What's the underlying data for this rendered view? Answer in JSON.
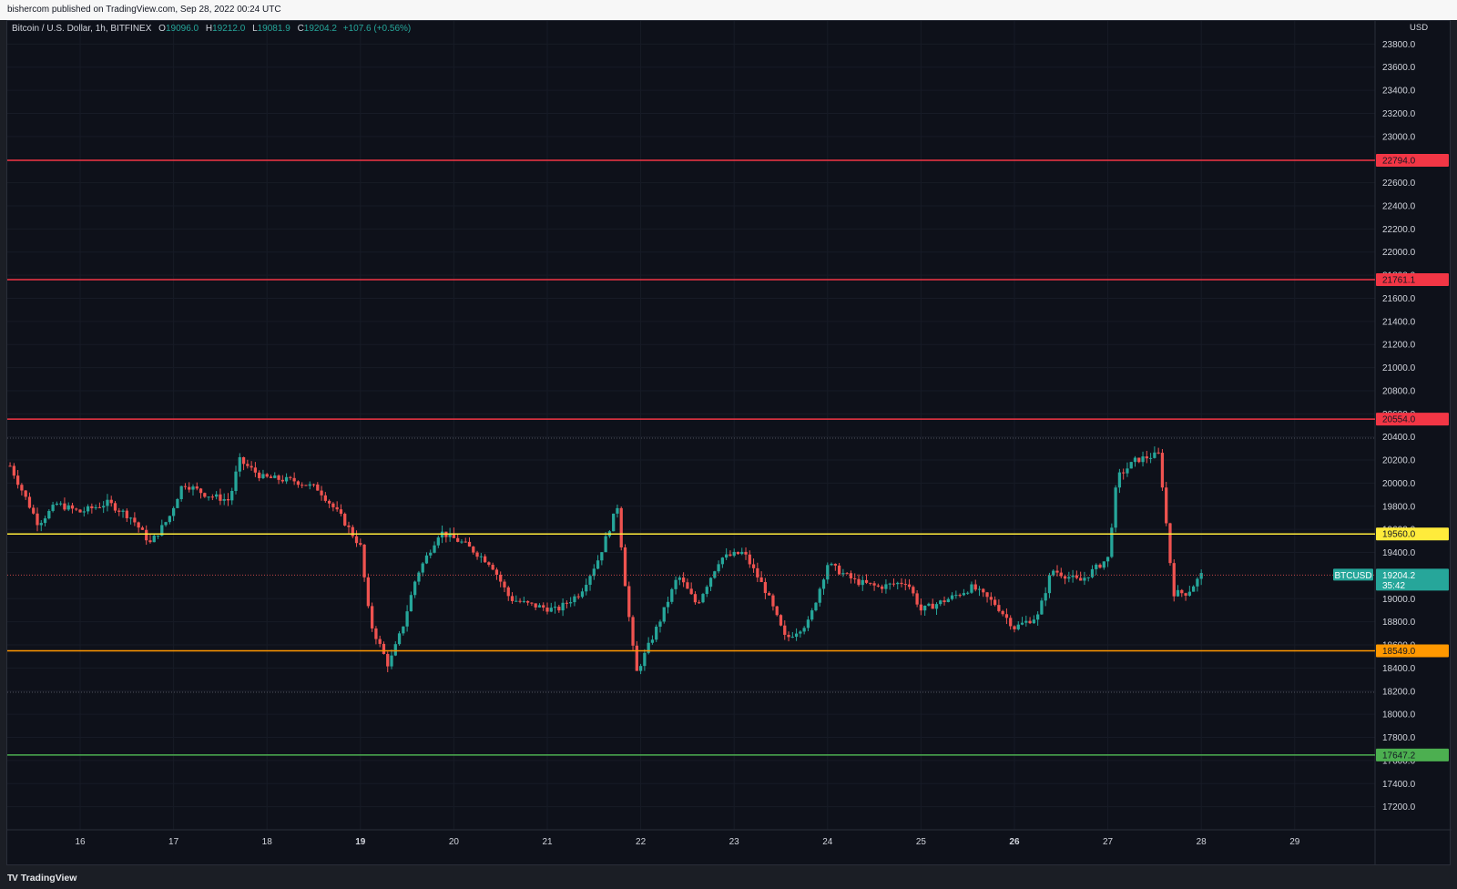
{
  "header": {
    "published": "bishercom published on TradingView.com, Sep 28, 2022 00:24 UTC"
  },
  "symbol": {
    "title": "Bitcoin / U.S. Dollar, 1h, BITFINEX",
    "open_label": "O",
    "open": "19096.0",
    "high_label": "H",
    "high": "19212.0",
    "low_label": "L",
    "low": "19081.9",
    "close_label": "C",
    "close": "19204.2",
    "change": "+107.6 (+0.56%)"
  },
  "currency": "USD",
  "colors": {
    "bg": "#0e111a",
    "up": "#26a69a",
    "down": "#ef5350",
    "red_level": "#f23645",
    "yellow_level": "#ffeb3b",
    "orange_level": "#ff9800",
    "green_level": "#4caf50"
  },
  "price_axis_ticks": [
    "23800.0",
    "23600.0",
    "23400.0",
    "23200.0",
    "23000.0",
    "22600.0",
    "22400.0",
    "22200.0",
    "22000.0",
    "21800.0",
    "21600.0",
    "21400.0",
    "21200.0",
    "21000.0",
    "20800.0",
    "20600.0",
    "20400.0",
    "20200.0",
    "20000.0",
    "19800.0",
    "19600.0",
    "19400.0",
    "19000.0",
    "18800.0",
    "18600.0",
    "18400.0",
    "18200.0",
    "18000.0",
    "17800.0",
    "17600.0",
    "17400.0",
    "17200.0"
  ],
  "time_axis_ticks": [
    {
      "label": "16",
      "t": 16
    },
    {
      "label": "17",
      "t": 17
    },
    {
      "label": "18",
      "t": 18
    },
    {
      "label": "19",
      "t": 19,
      "bold": true
    },
    {
      "label": "20",
      "t": 20
    },
    {
      "label": "21",
      "t": 21
    },
    {
      "label": "22",
      "t": 22
    },
    {
      "label": "23",
      "t": 23
    },
    {
      "label": "24",
      "t": 24
    },
    {
      "label": "25",
      "t": 25
    },
    {
      "label": "26",
      "t": 26,
      "bold": true
    },
    {
      "label": "27",
      "t": 27
    },
    {
      "label": "28",
      "t": 28
    },
    {
      "label": "29",
      "t": 29
    }
  ],
  "levels": [
    {
      "price": 22794.0,
      "label": "22794.0",
      "color": "#f23645"
    },
    {
      "price": 21761.1,
      "label": "21761.1",
      "color": "#f23645"
    },
    {
      "price": 20554.0,
      "label": "20554.0",
      "color": "#f23645"
    },
    {
      "price": 19560.0,
      "label": "19560.0",
      "color": "#ffeb3b"
    },
    {
      "price": 18549.0,
      "label": "18549.0",
      "color": "#ff9800"
    },
    {
      "price": 17647.2,
      "label": "17647.2",
      "color": "#4caf50"
    }
  ],
  "dotted_levels": [
    20390,
    18190
  ],
  "last_price": {
    "symbol": "BTCUSD",
    "price": "19204.2",
    "countdown": "35:42",
    "value": 19204.2
  },
  "chart_data": {
    "type": "candlestick",
    "interval": "1h",
    "x_unit": "day of Sep 2022",
    "y_unit": "USD",
    "ylim": [
      17000,
      24000
    ],
    "xlim": [
      15.22,
      29.86
    ],
    "series": [
      {
        "name": "BTCUSD",
        "points": [
          {
            "t": 15.25,
            "v": 20150
          },
          {
            "t": 15.55,
            "v": 19650
          },
          {
            "t": 15.75,
            "v": 19820
          },
          {
            "t": 16.0,
            "v": 19750
          },
          {
            "t": 16.3,
            "v": 19830
          },
          {
            "t": 16.55,
            "v": 19700
          },
          {
            "t": 16.75,
            "v": 19480
          },
          {
            "t": 16.95,
            "v": 19700
          },
          {
            "t": 17.1,
            "v": 20000
          },
          {
            "t": 17.35,
            "v": 19900
          },
          {
            "t": 17.6,
            "v": 19850
          },
          {
            "t": 17.7,
            "v": 20200
          },
          {
            "t": 17.95,
            "v": 20050
          },
          {
            "t": 18.3,
            "v": 20020
          },
          {
            "t": 18.55,
            "v": 19950
          },
          {
            "t": 18.8,
            "v": 19700
          },
          {
            "t": 19.0,
            "v": 19450
          },
          {
            "t": 19.1,
            "v": 18800
          },
          {
            "t": 19.3,
            "v": 18420
          },
          {
            "t": 19.45,
            "v": 18750
          },
          {
            "t": 19.6,
            "v": 19200
          },
          {
            "t": 19.85,
            "v": 19580
          },
          {
            "t": 20.1,
            "v": 19480
          },
          {
            "t": 20.4,
            "v": 19300
          },
          {
            "t": 20.6,
            "v": 19000
          },
          {
            "t": 20.8,
            "v": 18950
          },
          {
            "t": 21.1,
            "v": 18900
          },
          {
            "t": 21.35,
            "v": 19050
          },
          {
            "t": 21.55,
            "v": 19350
          },
          {
            "t": 21.75,
            "v": 19800
          },
          {
            "t": 21.85,
            "v": 19000
          },
          {
            "t": 21.95,
            "v": 18350
          },
          {
            "t": 22.2,
            "v": 18800
          },
          {
            "t": 22.4,
            "v": 19200
          },
          {
            "t": 22.6,
            "v": 18950
          },
          {
            "t": 22.85,
            "v": 19350
          },
          {
            "t": 23.1,
            "v": 19400
          },
          {
            "t": 23.35,
            "v": 19050
          },
          {
            "t": 23.55,
            "v": 18650
          },
          {
            "t": 23.8,
            "v": 18800
          },
          {
            "t": 24.0,
            "v": 19300
          },
          {
            "t": 24.3,
            "v": 19150
          },
          {
            "t": 24.55,
            "v": 19100
          },
          {
            "t": 24.85,
            "v": 19150
          },
          {
            "t": 25.0,
            "v": 18900
          },
          {
            "t": 25.3,
            "v": 19000
          },
          {
            "t": 25.55,
            "v": 19100
          },
          {
            "t": 25.8,
            "v": 18950
          },
          {
            "t": 26.0,
            "v": 18750
          },
          {
            "t": 26.25,
            "v": 18850
          },
          {
            "t": 26.4,
            "v": 19250
          },
          {
            "t": 26.7,
            "v": 19150
          },
          {
            "t": 27.0,
            "v": 19350
          },
          {
            "t": 27.1,
            "v": 20050
          },
          {
            "t": 27.3,
            "v": 20200
          },
          {
            "t": 27.55,
            "v": 20250
          },
          {
            "t": 27.7,
            "v": 19050
          },
          {
            "t": 27.85,
            "v": 19050
          },
          {
            "t": 28.0,
            "v": 19204
          }
        ]
      }
    ]
  },
  "branding": {
    "logo_mark": "TV",
    "logo_text": "TradingView"
  }
}
